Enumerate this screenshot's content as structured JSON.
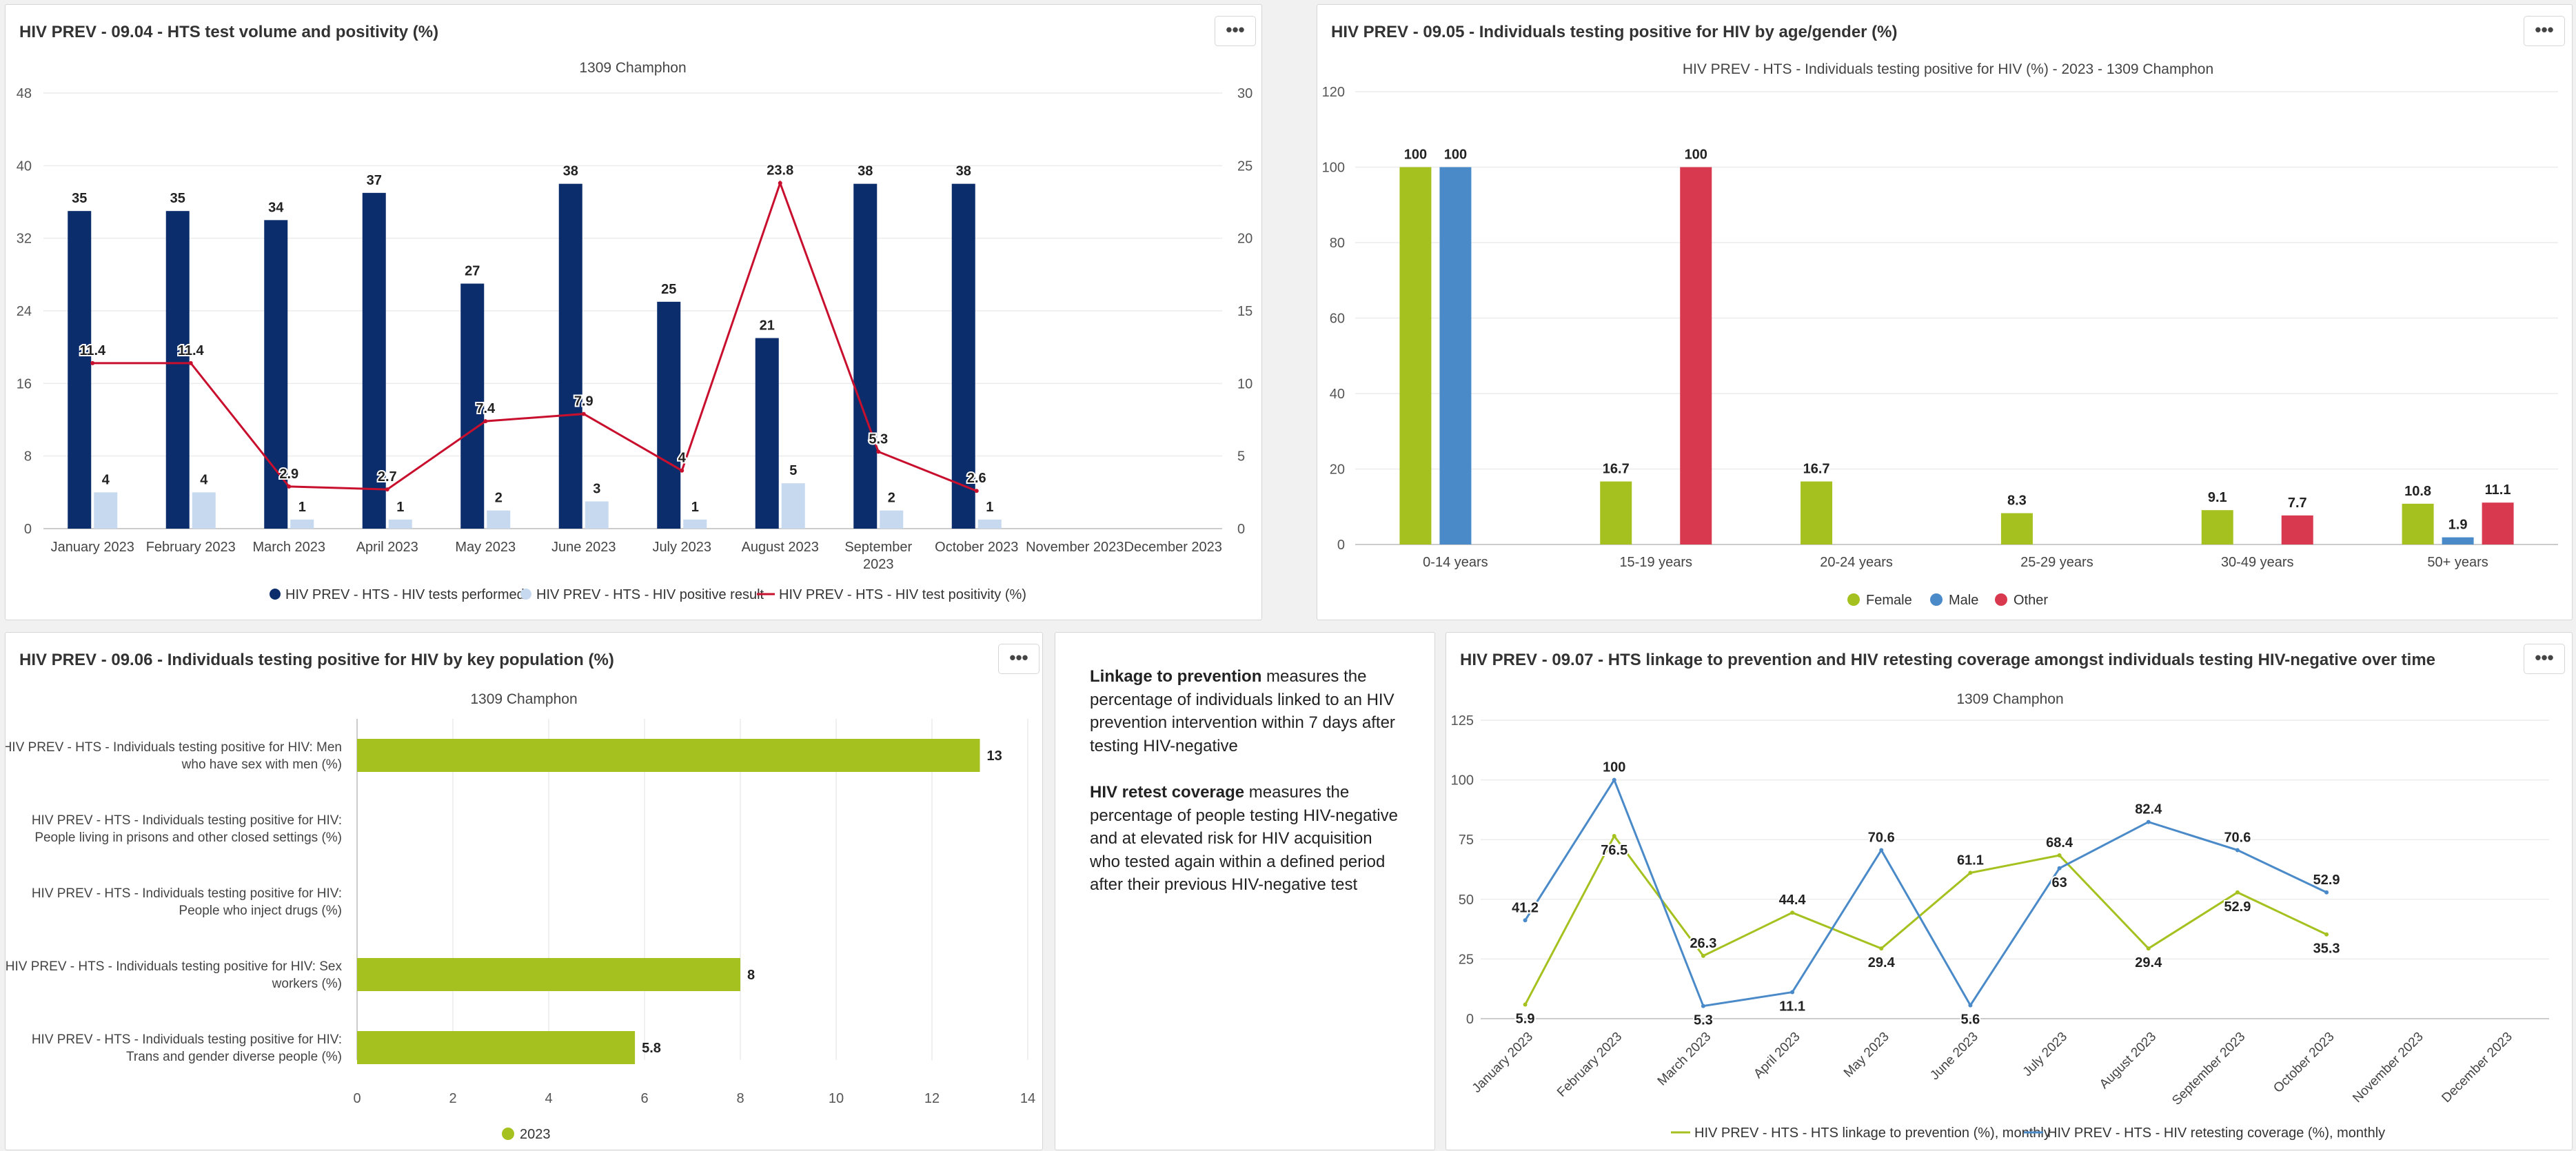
{
  "panel_904": {
    "title": "HIV PREV - 09.04 - HTS test volume and positivity (%)",
    "subtitle": "1309 Champhon",
    "menu_icon": "more-horizontal-icon"
  },
  "panel_905": {
    "title": "HIV PREV - 09.05 - Individuals testing positive for HIV by age/gender (%)",
    "subtitle": "HIV PREV - HTS - Individuals testing positive for HIV (%) - 2023 - 1309 Champhon",
    "menu_icon": "more-horizontal-icon"
  },
  "panel_906": {
    "title": "HIV PREV - 09.06 - Individuals testing positive for HIV by key population (%)",
    "subtitle": "1309 Champhon",
    "menu_icon": "more-horizontal-icon"
  },
  "panel_907": {
    "title": "HIV PREV - 09.07 - HTS linkage to prevention and HIV retesting coverage amongst individuals testing HIV-negative over time",
    "subtitle": "1309 Champhon",
    "menu_icon": "more-horizontal-icon"
  },
  "text_panel": {
    "p1_bold": "Linkage to prevention",
    "p1_rest": " measures the percentage of individuals linked to an HIV prevention intervention within 7 days after testing HIV-negative",
    "p2_bold": "HIV retest coverage",
    "p2_rest": " measures the percentage of people testing HIV-negative and at elevated risk for HIV acquisition who tested again within a defined period after their previous HIV-negative test"
  },
  "chart_data": [
    {
      "id": "c904",
      "type": "bar",
      "title": "1309 Champhon",
      "categories": [
        "January 2023",
        "February 2023",
        "March 2023",
        "April 2023",
        "May 2023",
        "June 2023",
        "July 2023",
        "August 2023",
        "September 2023",
        "October 2023",
        "November 2023",
        "December 2023"
      ],
      "series": [
        {
          "name": "HIV PREV - HTS - HIV tests performed",
          "type": "bar",
          "axis": "left",
          "color": "#0b2d6b",
          "values": [
            35,
            35,
            34,
            37,
            27,
            38,
            25,
            21,
            38,
            38,
            null,
            null
          ]
        },
        {
          "name": "HIV PREV - HTS - HIV positive result",
          "type": "bar",
          "axis": "left",
          "color": "#c6d9ef",
          "values": [
            4,
            4,
            1,
            1,
            2,
            3,
            1,
            5,
            2,
            1,
            null,
            null
          ]
        },
        {
          "name": "HIV PREV - HTS - HIV test positivity (%)",
          "type": "line",
          "axis": "right",
          "color": "#c8102e",
          "values": [
            11.4,
            11.4,
            2.9,
            2.7,
            7.4,
            7.9,
            4,
            23.8,
            5.3,
            2.6,
            null,
            null
          ]
        }
      ],
      "left_ticks": [
        0,
        8,
        16,
        24,
        32,
        40,
        48
      ],
      "right_ticks": [
        0,
        5,
        10,
        15,
        20,
        25,
        30
      ],
      "ylim_left": [
        0,
        48
      ],
      "ylim_right": [
        0,
        30
      ],
      "legend": "bottom"
    },
    {
      "id": "c905",
      "type": "bar",
      "title": "HIV PREV - HTS - Individuals testing positive for HIV (%) - 2023 - 1309 Champhon",
      "categories": [
        "0-14 years",
        "15-19 years",
        "20-24 years",
        "25-29 years",
        "30-49 years",
        "50+ years"
      ],
      "series": [
        {
          "name": "Female",
          "color": "#a5c11f",
          "values": [
            100,
            16.7,
            16.7,
            8.3,
            9.1,
            10.8
          ]
        },
        {
          "name": "Male",
          "color": "#4a8ac9",
          "values": [
            100,
            null,
            null,
            null,
            null,
            1.9
          ]
        },
        {
          "name": "Other",
          "color": "#d9394e",
          "values": [
            null,
            100,
            null,
            null,
            7.7,
            11.1
          ]
        }
      ],
      "ticks": [
        0,
        20,
        40,
        60,
        80,
        100,
        120
      ],
      "ylim": [
        0,
        120
      ],
      "legend": "bottom"
    },
    {
      "id": "c906",
      "type": "bar",
      "orientation": "horizontal",
      "title": "1309 Champhon",
      "categories": [
        {
          "line1": "HIV PREV - HTS - Individuals testing positive for HIV: Men",
          "line2": "who have sex with men (%)"
        },
        {
          "line1": "HIV PREV - HTS - Individuals testing positive for HIV:",
          "line2": "People living in prisons and other closed settings (%)"
        },
        {
          "line1": "HIV PREV - HTS - Individuals testing positive for HIV:",
          "line2": "People who inject drugs (%)"
        },
        {
          "line1": "HIV PREV - HTS - Individuals testing positive for HIV: Sex",
          "line2": "workers (%)"
        },
        {
          "line1": "HIV PREV - HTS - Individuals testing positive for HIV:",
          "line2": "Trans and gender diverse people (%)"
        }
      ],
      "series": [
        {
          "name": "2023",
          "color": "#a5c11f",
          "values": [
            13,
            null,
            null,
            8,
            5.8
          ]
        }
      ],
      "ticks": [
        0,
        2,
        4,
        6,
        8,
        10,
        12,
        14
      ],
      "xlim": [
        0,
        14
      ],
      "legend": "bottom"
    },
    {
      "id": "c907",
      "type": "line",
      "title": "1309 Champhon",
      "categories": [
        "January 2023",
        "February 2023",
        "March 2023",
        "April 2023",
        "May 2023",
        "June 2023",
        "July 2023",
        "August 2023",
        "September 2023",
        "October 2023",
        "November 2023",
        "December 2023"
      ],
      "series": [
        {
          "name": "HIV PREV - HTS - HTS linkage to prevention (%), monthly",
          "color": "#a5c11f",
          "values": [
            5.9,
            76.5,
            26.3,
            44.4,
            29.4,
            61.1,
            68.4,
            29.4,
            52.9,
            35.3,
            null,
            null
          ]
        },
        {
          "name": "HIV PREV - HTS - HIV retesting coverage (%), monthly",
          "color": "#4a8ac9",
          "values": [
            41.2,
            100,
            5.3,
            11.1,
            70.6,
            5.6,
            63,
            82.4,
            70.6,
            52.9,
            null,
            null
          ]
        }
      ],
      "ticks": [
        0,
        25,
        50,
        75,
        100,
        125
      ],
      "ylim": [
        0,
        125
      ],
      "legend": "bottom"
    }
  ]
}
